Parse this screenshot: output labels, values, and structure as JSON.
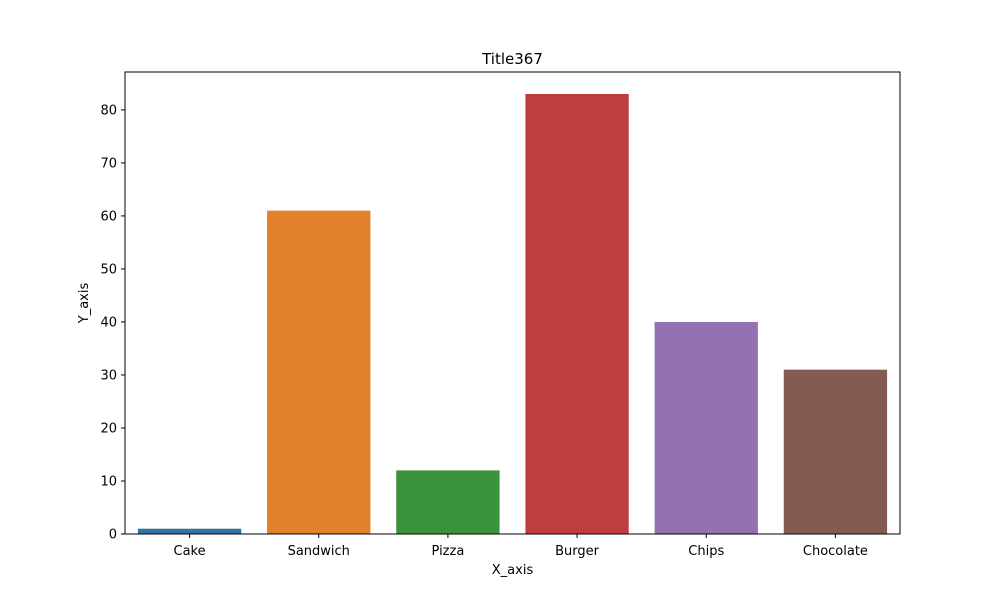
{
  "chart_data": {
    "type": "bar",
    "title": "Title367",
    "xlabel": "X_axis",
    "ylabel": "Y_axis",
    "categories": [
      "Cake",
      "Sandwich",
      "Pizza",
      "Burger",
      "Chips",
      "Chocolate"
    ],
    "values": [
      1,
      61,
      12,
      83,
      40,
      31
    ],
    "colors": [
      "#3274a1",
      "#e1812c",
      "#3a923a",
      "#c03d3e",
      "#9372b2",
      "#845b53"
    ],
    "ylim": [
      0,
      87.15
    ],
    "yticks": [
      0,
      10,
      20,
      30,
      40,
      50,
      60,
      70,
      80
    ],
    "grid": false,
    "legend": "none"
  }
}
